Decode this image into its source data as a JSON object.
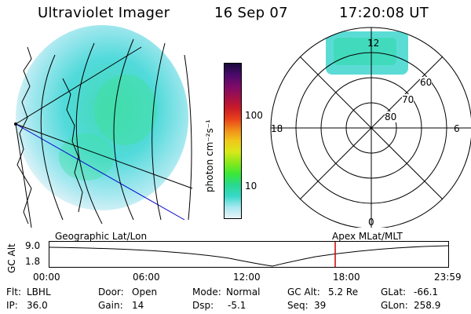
{
  "header": {
    "instrument": "Ultraviolet Imager",
    "date": "16 Sep 07",
    "time": "17:20:08 UT"
  },
  "colorbar": {
    "unit_label": "photon cm⁻²s⁻¹",
    "ticks": [
      "100",
      "10"
    ],
    "colors": [
      "#1a0a3a",
      "#4a0a6a",
      "#7a0a6a",
      "#a0104a",
      "#c81a2a",
      "#e8401a",
      "#f08c1a",
      "#f0c81a",
      "#d8e81a",
      "#88e81a",
      "#38e838",
      "#28d890",
      "#38d8c8",
      "#a8e8f0",
      "#e8f4f8"
    ]
  },
  "left_map": {
    "label": "Geographic Lat/Lon"
  },
  "polar_plot": {
    "label": "Apex MLat/MLT",
    "mlt_labels": {
      "top": "12",
      "left": "18",
      "right": "6",
      "bottom": "0"
    },
    "lat_labels": [
      "60",
      "70",
      "80"
    ]
  },
  "altitude_plot": {
    "ylabel": "GC Alt",
    "y_ticks": [
      "9.0",
      "1.8"
    ],
    "x_ticks": [
      "00:00",
      "06:00",
      "12:00",
      "18:00",
      "23:59"
    ],
    "marker_color": "#cc0000"
  },
  "info": {
    "filter_label": "Flt:",
    "filter_value": "LBHL",
    "ip_label": "IP:",
    "ip_value": "36.0",
    "door_label": "Door:",
    "door_value": "Open",
    "gain_label": "Gain:",
    "gain_value": "14",
    "mode_label": "Mode:",
    "mode_value": "Normal",
    "dsp_label": "Dsp:",
    "dsp_value": "-5.1",
    "gcalt_label": "GC Alt:",
    "gcalt_value": "5.2 Re",
    "seq_label": "Seq:",
    "seq_value": "39",
    "glat_label": "GLat:",
    "glat_value": "-66.1",
    "glon_label": "GLon:",
    "glon_value": "258.9"
  }
}
